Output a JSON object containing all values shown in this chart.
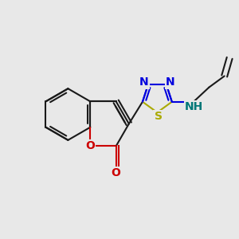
{
  "bg_color": "#e8e8e8",
  "bond_color": "#1a1a1a",
  "n_color": "#0000dd",
  "o_color": "#cc0000",
  "s_color": "#aaaa00",
  "nh_color": "#007777",
  "lw": 1.5,
  "dbl_off": 0.055,
  "fs": 10,
  "xlim": [
    -2.2,
    2.4
  ],
  "ylim": [
    -2.0,
    1.8
  ]
}
